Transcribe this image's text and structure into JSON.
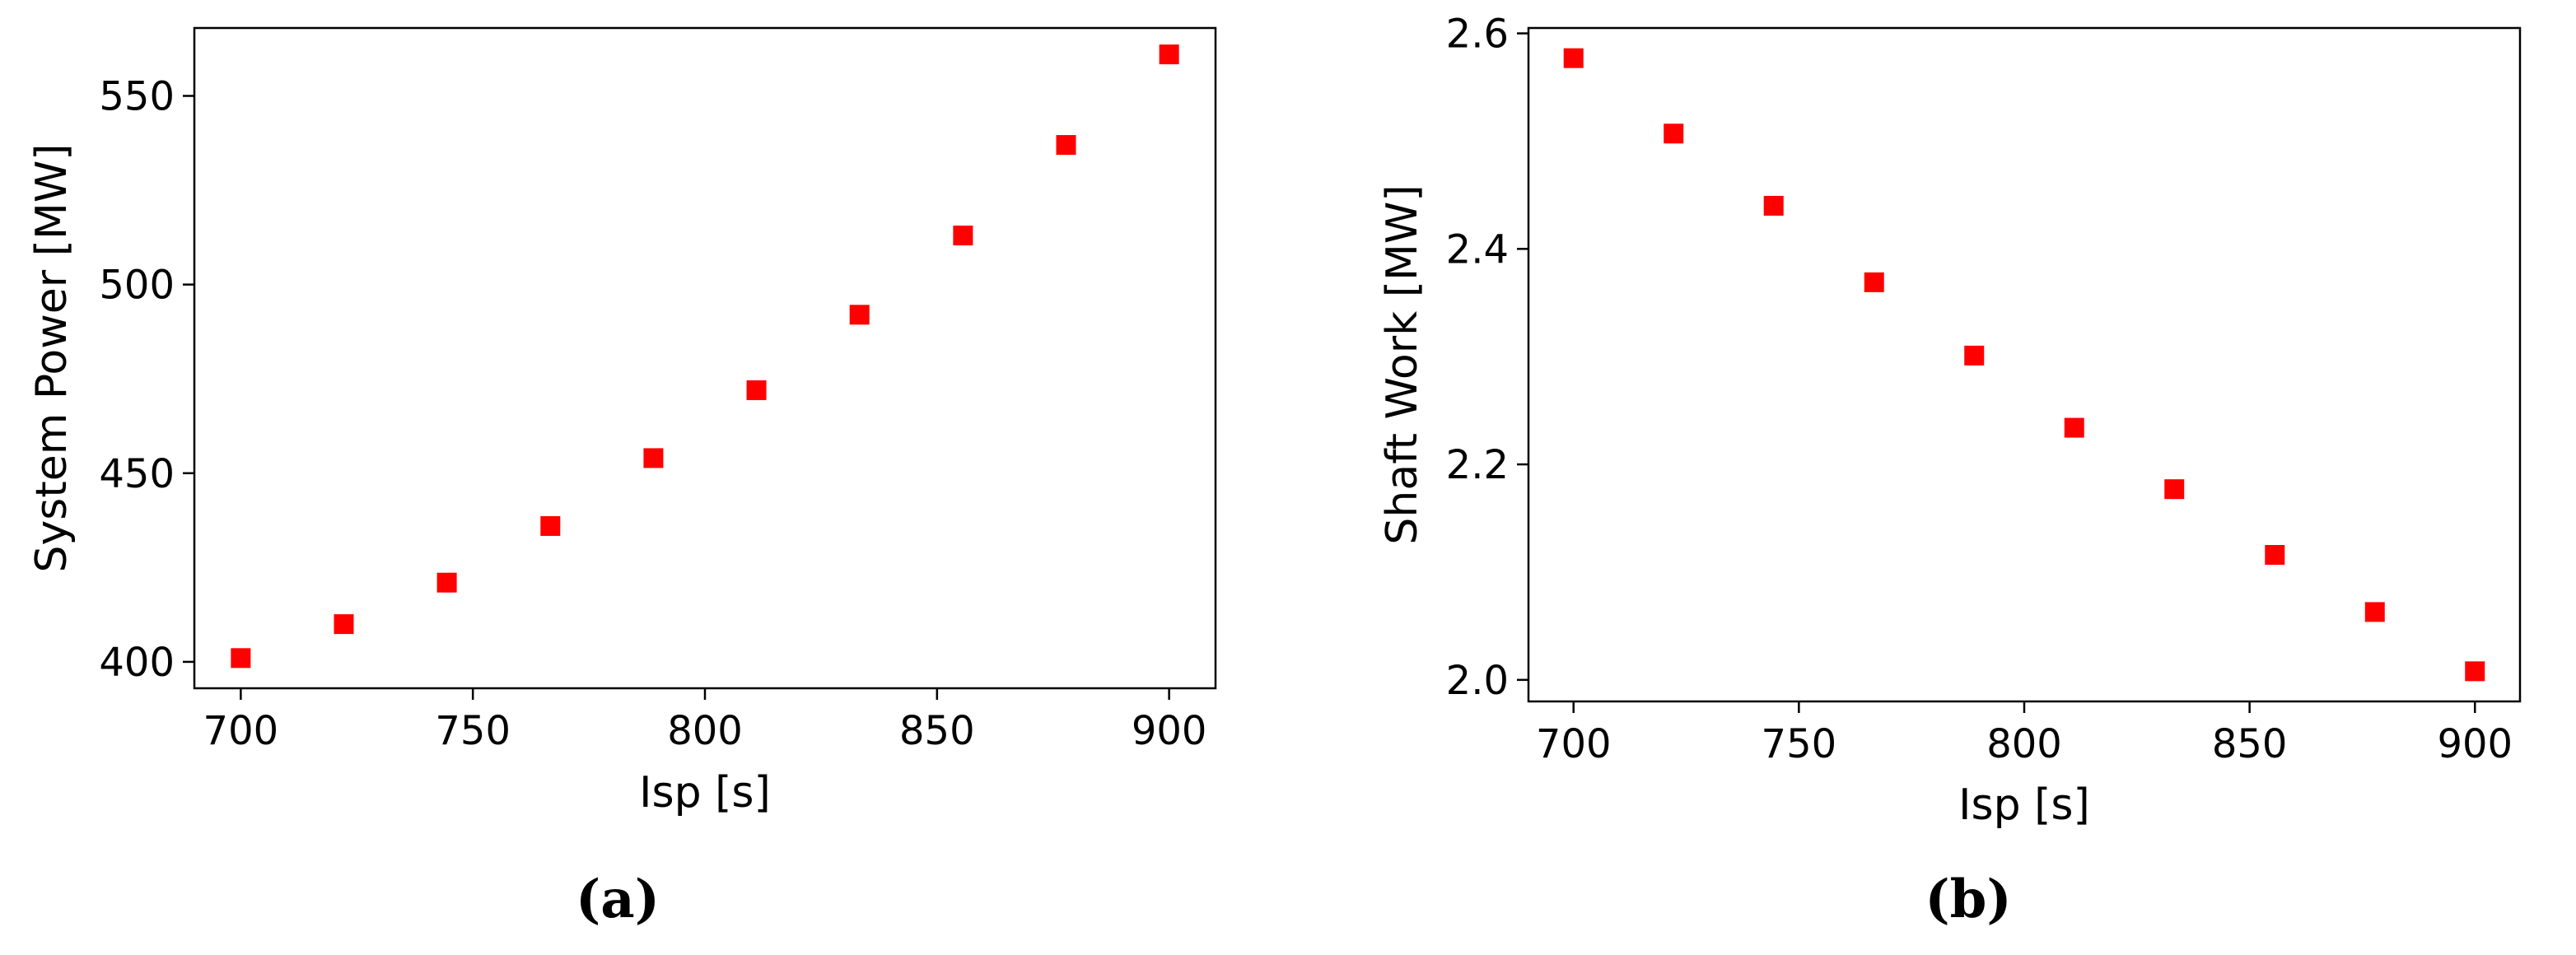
{
  "chart_data": [
    {
      "type": "scatter",
      "panel": "a",
      "xlabel": "Isp [s]",
      "ylabel": "System Power [MW]",
      "xlim": [
        690,
        910
      ],
      "ylim": [
        393,
        568
      ],
      "xticks": [
        700,
        750,
        800,
        850,
        900
      ],
      "yticks": [
        400,
        450,
        500,
        550
      ],
      "marker": "square",
      "color": "#ff0000",
      "grid": false,
      "x": [
        700,
        722.2,
        744.4,
        766.7,
        788.9,
        811.1,
        833.3,
        855.6,
        877.8,
        900
      ],
      "y": [
        401,
        410,
        421,
        436,
        454,
        472,
        492,
        513,
        537,
        561
      ]
    },
    {
      "type": "scatter",
      "panel": "b",
      "xlabel": "Isp [s]",
      "ylabel": "Shaft Work [MW]",
      "xlim": [
        690,
        910
      ],
      "ylim": [
        1.98,
        2.605
      ],
      "xticks": [
        700,
        750,
        800,
        850,
        900
      ],
      "yticks": [
        2.0,
        2.2,
        2.4,
        2.6
      ],
      "ytick_labels": [
        "2.0",
        "2.2",
        "2.4",
        "2.6"
      ],
      "marker": "square",
      "color": "#ff0000",
      "grid": false,
      "x": [
        700,
        722.2,
        744.4,
        766.7,
        788.9,
        811.1,
        833.3,
        855.6,
        877.8,
        900
      ],
      "y": [
        2.577,
        2.507,
        2.44,
        2.369,
        2.301,
        2.234,
        2.177,
        2.116,
        2.063,
        2.008
      ]
    }
  ],
  "captions": {
    "a": "(a)",
    "b": "(b)"
  }
}
